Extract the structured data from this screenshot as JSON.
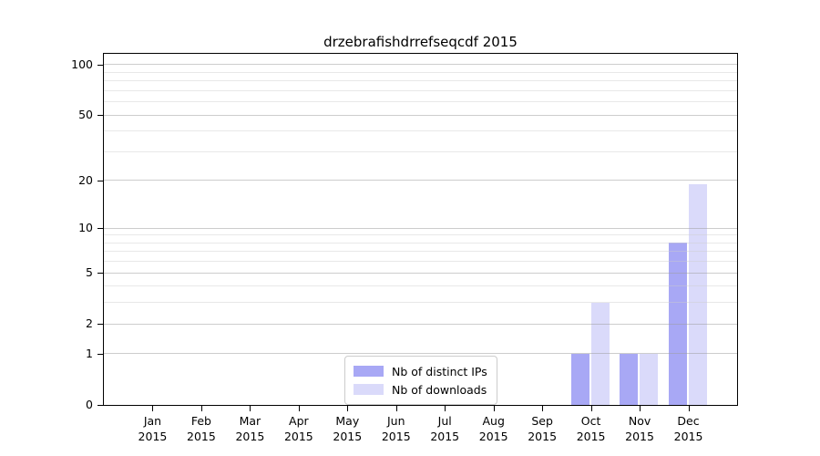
{
  "chart_data": {
    "type": "bar",
    "title": "drzebrafishdrrefseqcdf 2015",
    "categories": [
      "Jan 2015",
      "Feb 2015",
      "Mar 2015",
      "Apr 2015",
      "May 2015",
      "Jun 2015",
      "Jul 2015",
      "Aug 2015",
      "Sep 2015",
      "Oct 2015",
      "Nov 2015",
      "Dec 2015"
    ],
    "series": [
      {
        "name": "Nb of distinct IPs",
        "color": "#a8a8f5",
        "values": [
          0,
          0,
          0,
          0,
          0,
          0,
          0,
          0,
          0,
          1,
          1,
          8
        ]
      },
      {
        "name": "Nb of downloads",
        "color": "#dadafa",
        "values": [
          0,
          0,
          0,
          0,
          0,
          0,
          0,
          0,
          0,
          3,
          1,
          19
        ]
      }
    ],
    "y_axis": {
      "scale": "log10(1+x)",
      "ticks": [
        0,
        1,
        2,
        5,
        10,
        20,
        50,
        100
      ],
      "minor_ticks": [
        3,
        4,
        6,
        7,
        8,
        9,
        30,
        40,
        60,
        70,
        80,
        90
      ],
      "max_value": 116
    },
    "x_axis": {
      "tick_label_years_shown": true
    },
    "legend_position": "bottom-center",
    "grid": true
  },
  "colors": {
    "background": "#ffffff",
    "axis": "#000000",
    "major_grid": "#cacaca",
    "minor_grid": "#e9e9e9",
    "legend_border": "#cccccc",
    "distinct_ips": "#a8a8f5",
    "downloads": "#dadafa"
  }
}
